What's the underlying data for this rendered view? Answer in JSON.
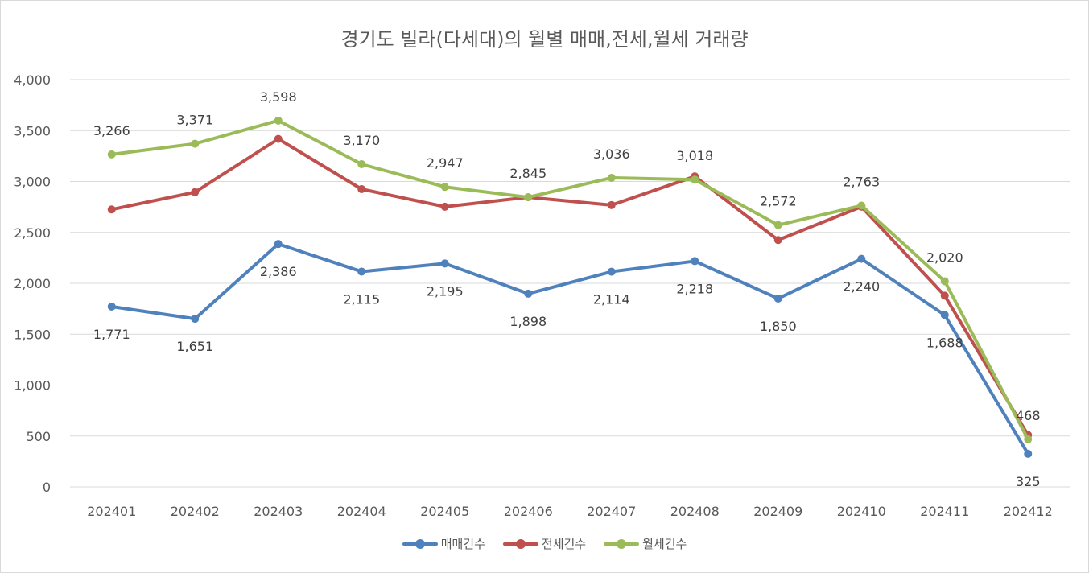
{
  "chart_data": {
    "type": "line",
    "title": "경기도 빌라(다세대)의 월별 매매,전세,월세 거래량",
    "xlabel": "",
    "ylabel": "",
    "categories": [
      "202401",
      "202402",
      "202403",
      "202404",
      "202405",
      "202406",
      "202407",
      "202408",
      "202409",
      "202410",
      "202411",
      "202412"
    ],
    "ylim": [
      0,
      4000
    ],
    "yticks": [
      0,
      500,
      1000,
      1500,
      2000,
      2500,
      3000,
      3500,
      4000
    ],
    "ytick_labels": [
      "0",
      "500",
      "1,000",
      "1,500",
      "2,000",
      "2,500",
      "3,000",
      "3,500",
      "4,000"
    ],
    "grid": true,
    "legend_position": "bottom",
    "series": [
      {
        "name": "매매건수",
        "color": "#4f81bd",
        "values": [
          1771,
          1651,
          2386,
          2115,
          2195,
          1898,
          2114,
          2218,
          1850,
          2240,
          1688,
          325
        ],
        "labels": [
          "1,771",
          "1,651",
          "2,386",
          "2,115",
          "2,195",
          "1,898",
          "2,114",
          "2,218",
          "1,850",
          "2,240",
          "1,688",
          "325"
        ],
        "label_position": "below"
      },
      {
        "name": "전세건수",
        "color": "#c0504d",
        "values": [
          2725,
          2895,
          3418,
          2925,
          2752,
          2845,
          2768,
          3050,
          2425,
          2752,
          1878,
          510
        ],
        "labels": [],
        "label_position": "none"
      },
      {
        "name": "월세건수",
        "color": "#9bbb59",
        "values": [
          3266,
          3371,
          3598,
          3170,
          2947,
          2845,
          3036,
          3018,
          2572,
          2763,
          2020,
          468
        ],
        "labels": [
          "3,266",
          "3,371",
          "3,598",
          "3,170",
          "2,947",
          "2,845",
          "3,036",
          "3,018",
          "2,572",
          "2,763",
          "2,020",
          "468"
        ],
        "label_position": "above"
      }
    ]
  }
}
